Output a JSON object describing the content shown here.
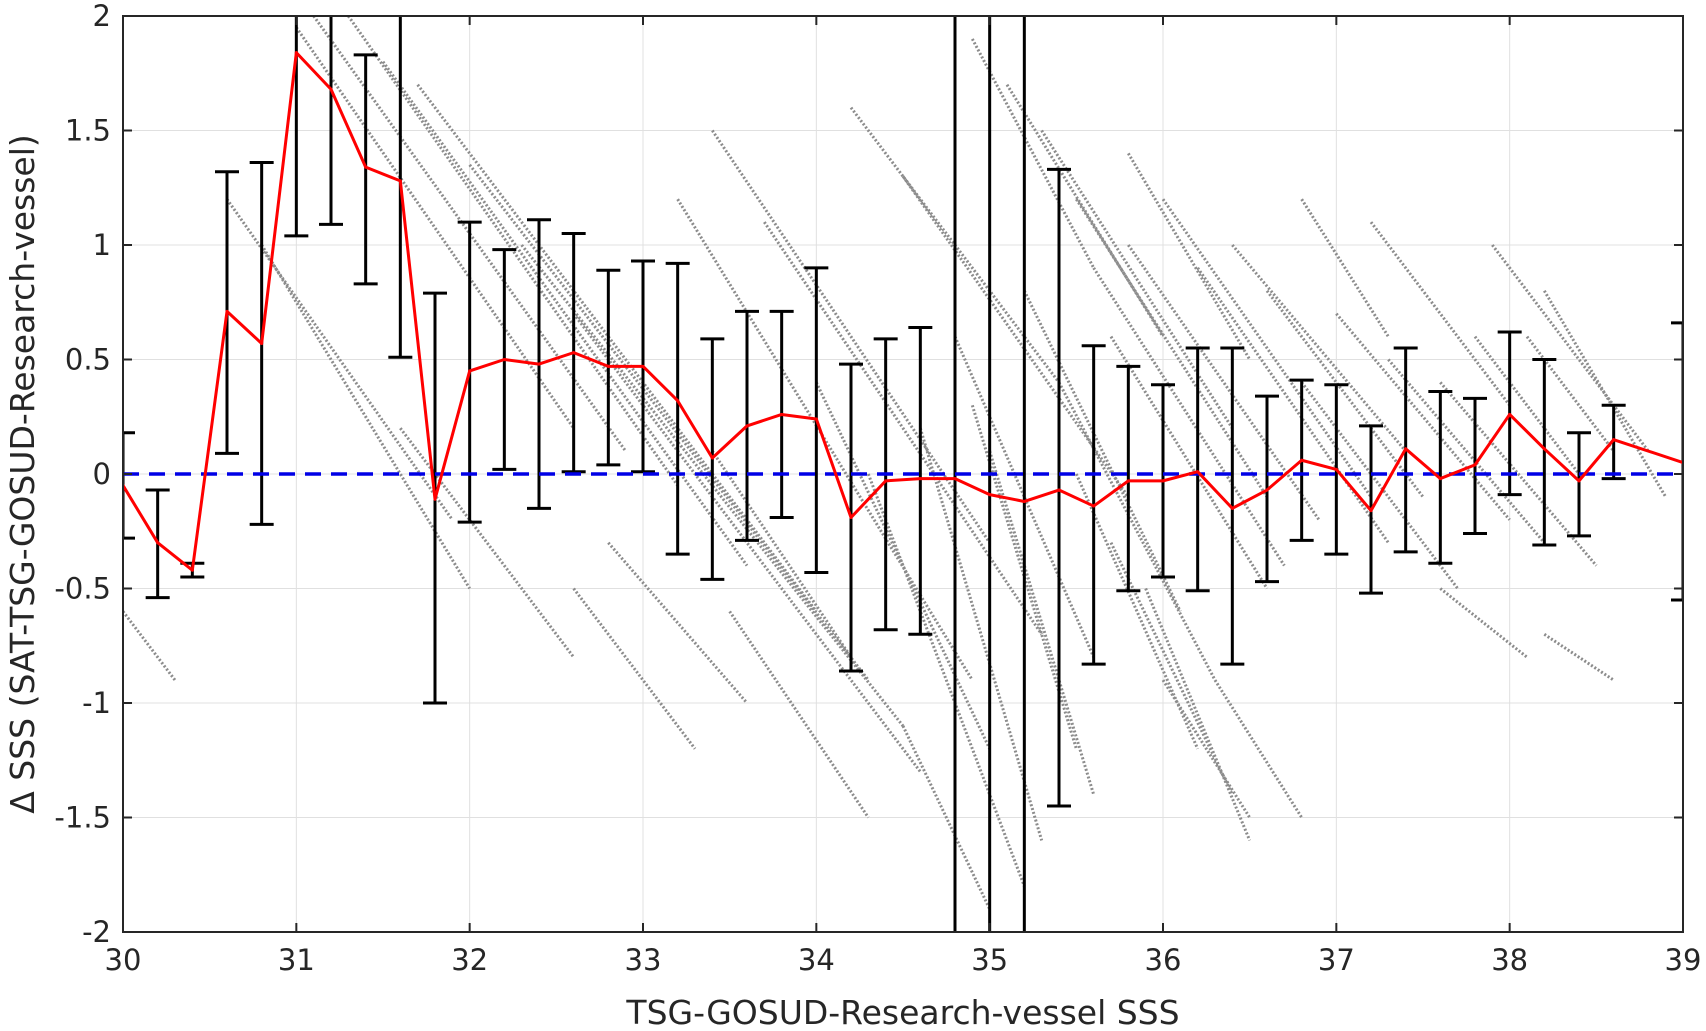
{
  "chart_data": {
    "type": "scatter",
    "xlabel": "TSG-GOSUD-Research-vessel SSS",
    "ylabel": "Δ SSS (SAT-TSG-GOSUD-Research-vessel)",
    "xlim": [
      30,
      39
    ],
    "ylim": [
      -2,
      2
    ],
    "x_ticks": [
      30,
      31,
      32,
      33,
      34,
      35,
      36,
      37,
      38,
      39
    ],
    "y_ticks": [
      2,
      1.5,
      1,
      0.5,
      0,
      -0.5,
      -1,
      -1.5,
      -2
    ],
    "y_tick_labels": [
      "2",
      "1.5",
      "1",
      "0.5",
      "0",
      "-0.5",
      "-1",
      "-1.5",
      "-2"
    ],
    "grid": true,
    "colors": {
      "scatter": "#8c8c8c",
      "mean_line": "#ff0000",
      "zero_line": "#0000e6",
      "error_bars": "#000000",
      "grid": "#e0e0e0",
      "axis": "#262626"
    },
    "zero_reference": 0,
    "bin_means": {
      "x": [
        30.0,
        30.2,
        30.4,
        30.6,
        30.8,
        31.0,
        31.2,
        31.4,
        31.6,
        31.8,
        32.0,
        32.2,
        32.4,
        32.6,
        32.8,
        33.0,
        33.2,
        33.4,
        33.6,
        33.8,
        34.0,
        34.2,
        34.4,
        34.6,
        34.8,
        35.0,
        35.2,
        35.4,
        35.6,
        35.8,
        36.0,
        36.2,
        36.4,
        36.6,
        36.8,
        37.0,
        37.2,
        37.4,
        37.6,
        37.8,
        38.0,
        38.2,
        38.4,
        38.6,
        39.0
      ],
      "y": [
        -0.05,
        -0.3,
        -0.42,
        0.71,
        0.57,
        1.84,
        1.68,
        1.34,
        1.28,
        -0.11,
        0.45,
        0.5,
        0.48,
        0.53,
        0.47,
        0.47,
        0.32,
        0.07,
        0.21,
        0.26,
        0.24,
        -0.19,
        -0.03,
        -0.02,
        -0.02,
        -0.09,
        -0.12,
        -0.07,
        -0.14,
        -0.03,
        -0.03,
        0.01,
        -0.15,
        -0.07,
        0.06,
        0.02,
        -0.16,
        0.11,
        -0.02,
        0.04,
        0.26,
        0.11,
        -0.03,
        0.15,
        0.05
      ]
    },
    "error_bars": {
      "x": [
        30.0,
        30.2,
        30.4,
        30.6,
        30.8,
        31.0,
        31.2,
        31.4,
        31.6,
        31.8,
        32.0,
        32.2,
        32.4,
        32.6,
        32.8,
        33.0,
        33.2,
        33.4,
        33.6,
        33.8,
        34.0,
        34.2,
        34.4,
        34.6,
        34.8,
        35.0,
        35.2,
        35.4,
        35.6,
        35.8,
        36.0,
        36.2,
        36.4,
        36.6,
        36.8,
        37.0,
        37.2,
        37.4,
        37.6,
        37.8,
        38.0,
        38.2,
        38.4,
        38.6,
        39.0
      ],
      "low": [
        -0.28,
        -0.54,
        -0.45,
        0.09,
        -0.22,
        1.04,
        1.09,
        0.83,
        0.51,
        -1.0,
        -0.21,
        0.02,
        -0.15,
        0.01,
        0.04,
        0.01,
        -0.35,
        -0.46,
        -0.29,
        -0.19,
        -0.43,
        -0.86,
        -0.68,
        -0.7,
        -2.5,
        -2.5,
        -2.5,
        -1.45,
        -0.83,
        -0.51,
        -0.45,
        -0.51,
        -0.83,
        -0.47,
        -0.29,
        -0.35,
        -0.52,
        -0.34,
        -0.39,
        -0.26,
        -0.09,
        -0.31,
        -0.27,
        -0.02,
        -0.55
      ],
      "high": [
        0.18,
        -0.07,
        -0.39,
        1.32,
        1.36,
        2.5,
        2.5,
        1.83,
        2.5,
        0.79,
        1.1,
        0.98,
        1.11,
        1.05,
        0.89,
        0.93,
        0.92,
        0.59,
        0.71,
        0.71,
        0.9,
        0.48,
        0.59,
        0.64,
        2.5,
        2.5,
        2.5,
        1.33,
        0.56,
        0.47,
        0.39,
        0.55,
        0.55,
        0.34,
        0.41,
        0.39,
        0.21,
        0.55,
        0.36,
        0.33,
        0.62,
        0.5,
        0.18,
        0.3,
        0.66
      ]
    },
    "scatter_streaks": [
      {
        "x0": 31.0,
        "y0": 1.95,
        "x1": 32.6,
        "y1": 0.2
      },
      {
        "x0": 31.1,
        "y0": 2.0,
        "x1": 32.9,
        "y1": 0.1
      },
      {
        "x0": 31.3,
        "y0": 2.0,
        "x1": 33.2,
        "y1": -0.05
      },
      {
        "x0": 31.5,
        "y0": 1.8,
        "x1": 33.6,
        "y1": -0.4
      },
      {
        "x0": 31.7,
        "y0": 1.7,
        "x1": 34.0,
        "y1": -0.6
      },
      {
        "x0": 32.0,
        "y0": 1.35,
        "x1": 34.3,
        "y1": -0.9
      },
      {
        "x0": 32.3,
        "y0": 1.0,
        "x1": 34.5,
        "y1": -1.1
      },
      {
        "x0": 32.6,
        "y0": 0.7,
        "x1": 34.6,
        "y1": -1.3
      },
      {
        "x0": 30.6,
        "y0": 1.2,
        "x1": 31.9,
        "y1": -0.2
      },
      {
        "x0": 30.8,
        "y0": 1.0,
        "x1": 32.0,
        "y1": -0.5
      },
      {
        "x0": 31.6,
        "y0": 0.2,
        "x1": 32.6,
        "y1": -0.8
      },
      {
        "x0": 33.2,
        "y0": 1.2,
        "x1": 34.9,
        "y1": -0.9
      },
      {
        "x0": 33.4,
        "y0": 1.5,
        "x1": 35.0,
        "y1": -0.3
      },
      {
        "x0": 33.7,
        "y0": 1.1,
        "x1": 35.3,
        "y1": -0.7
      },
      {
        "x0": 34.2,
        "y0": 1.6,
        "x1": 35.4,
        "y1": 0.4
      },
      {
        "x0": 34.5,
        "y0": 1.3,
        "x1": 35.8,
        "y1": -0.1
      },
      {
        "x0": 34.0,
        "y0": 0.4,
        "x1": 35.0,
        "y1": -1.2
      },
      {
        "x0": 34.3,
        "y0": 0.0,
        "x1": 35.2,
        "y1": -1.8
      },
      {
        "x0": 34.6,
        "y0": 0.2,
        "x1": 35.3,
        "y1": -1.6
      },
      {
        "x0": 35.1,
        "y0": 1.7,
        "x1": 36.0,
        "y1": 0.6
      },
      {
        "x0": 35.3,
        "y0": 1.5,
        "x1": 36.4,
        "y1": 0.2
      },
      {
        "x0": 35.5,
        "y0": 1.2,
        "x1": 36.6,
        "y1": -0.1
      },
      {
        "x0": 35.6,
        "y0": 0.9,
        "x1": 36.7,
        "y1": -0.4
      },
      {
        "x0": 35.7,
        "y0": 0.6,
        "x1": 36.6,
        "y1": -0.5
      },
      {
        "x0": 35.8,
        "y0": 1.0,
        "x1": 36.9,
        "y1": -0.2
      },
      {
        "x0": 36.0,
        "y0": 1.2,
        "x1": 37.2,
        "y1": -0.1
      },
      {
        "x0": 36.2,
        "y0": 0.9,
        "x1": 37.3,
        "y1": -0.3
      },
      {
        "x0": 36.4,
        "y0": 1.0,
        "x1": 37.4,
        "y1": 0.1
      },
      {
        "x0": 36.6,
        "y0": 0.8,
        "x1": 37.5,
        "y1": -0.1
      },
      {
        "x0": 35.4,
        "y0": 0.4,
        "x1": 36.3,
        "y1": -0.9
      },
      {
        "x0": 35.5,
        "y0": 0.0,
        "x1": 36.2,
        "y1": -1.2
      },
      {
        "x0": 35.7,
        "y0": -0.3,
        "x1": 36.4,
        "y1": -1.4
      },
      {
        "x0": 35.9,
        "y0": -0.5,
        "x1": 36.5,
        "y1": -1.6
      },
      {
        "x0": 35.2,
        "y0": 0.8,
        "x1": 36.1,
        "y1": -0.6
      },
      {
        "x0": 34.8,
        "y0": 0.6,
        "x1": 35.6,
        "y1": -0.8
      },
      {
        "x0": 34.9,
        "y0": 0.3,
        "x1": 35.5,
        "y1": -1.2
      },
      {
        "x0": 35.0,
        "y0": 0.1,
        "x1": 35.6,
        "y1": -1.4
      },
      {
        "x0": 36.8,
        "y0": 0.4,
        "x1": 37.7,
        "y1": -0.5
      },
      {
        "x0": 37.0,
        "y0": 0.7,
        "x1": 38.0,
        "y1": -0.2
      },
      {
        "x0": 37.3,
        "y0": 0.5,
        "x1": 38.2,
        "y1": -0.3
      },
      {
        "x0": 37.6,
        "y0": 0.4,
        "x1": 38.5,
        "y1": -0.4
      },
      {
        "x0": 37.8,
        "y0": 0.6,
        "x1": 38.4,
        "y1": 0.0
      },
      {
        "x0": 38.1,
        "y0": 0.6,
        "x1": 38.6,
        "y1": 0.1
      },
      {
        "x0": 37.9,
        "y0": 1.0,
        "x1": 38.8,
        "y1": 0.1
      },
      {
        "x0": 37.2,
        "y0": 1.1,
        "x1": 38.0,
        "y1": 0.3
      },
      {
        "x0": 37.6,
        "y0": -0.5,
        "x1": 38.1,
        "y1": -0.8
      },
      {
        "x0": 38.2,
        "y0": -0.7,
        "x1": 38.6,
        "y1": -0.9
      },
      {
        "x0": 36.3,
        "y0": -0.9,
        "x1": 36.8,
        "y1": -1.5
      },
      {
        "x0": 36.0,
        "y0": -0.9,
        "x1": 36.5,
        "y1": -1.5
      },
      {
        "x0": 34.5,
        "y0": -1.1,
        "x1": 35.0,
        "y1": -1.9
      },
      {
        "x0": 33.5,
        "y0": -0.6,
        "x1": 34.3,
        "y1": -1.5
      },
      {
        "x0": 32.8,
        "y0": -0.3,
        "x1": 33.6,
        "y1": -1.0
      },
      {
        "x0": 33.4,
        "y0": 0.1,
        "x1": 34.2,
        "y1": -0.8
      },
      {
        "x0": 30.0,
        "y0": -0.6,
        "x1": 30.3,
        "y1": -0.9
      },
      {
        "x0": 32.6,
        "y0": -0.5,
        "x1": 33.3,
        "y1": -1.2
      },
      {
        "x0": 34.9,
        "y0": 1.9,
        "x1": 35.6,
        "y1": 0.9
      },
      {
        "x0": 35.8,
        "y0": 1.4,
        "x1": 36.5,
        "y1": 0.5
      },
      {
        "x0": 36.8,
        "y0": 1.2,
        "x1": 37.3,
        "y1": 0.6
      },
      {
        "x0": 38.2,
        "y0": 0.8,
        "x1": 38.9,
        "y1": -0.1
      }
    ]
  }
}
